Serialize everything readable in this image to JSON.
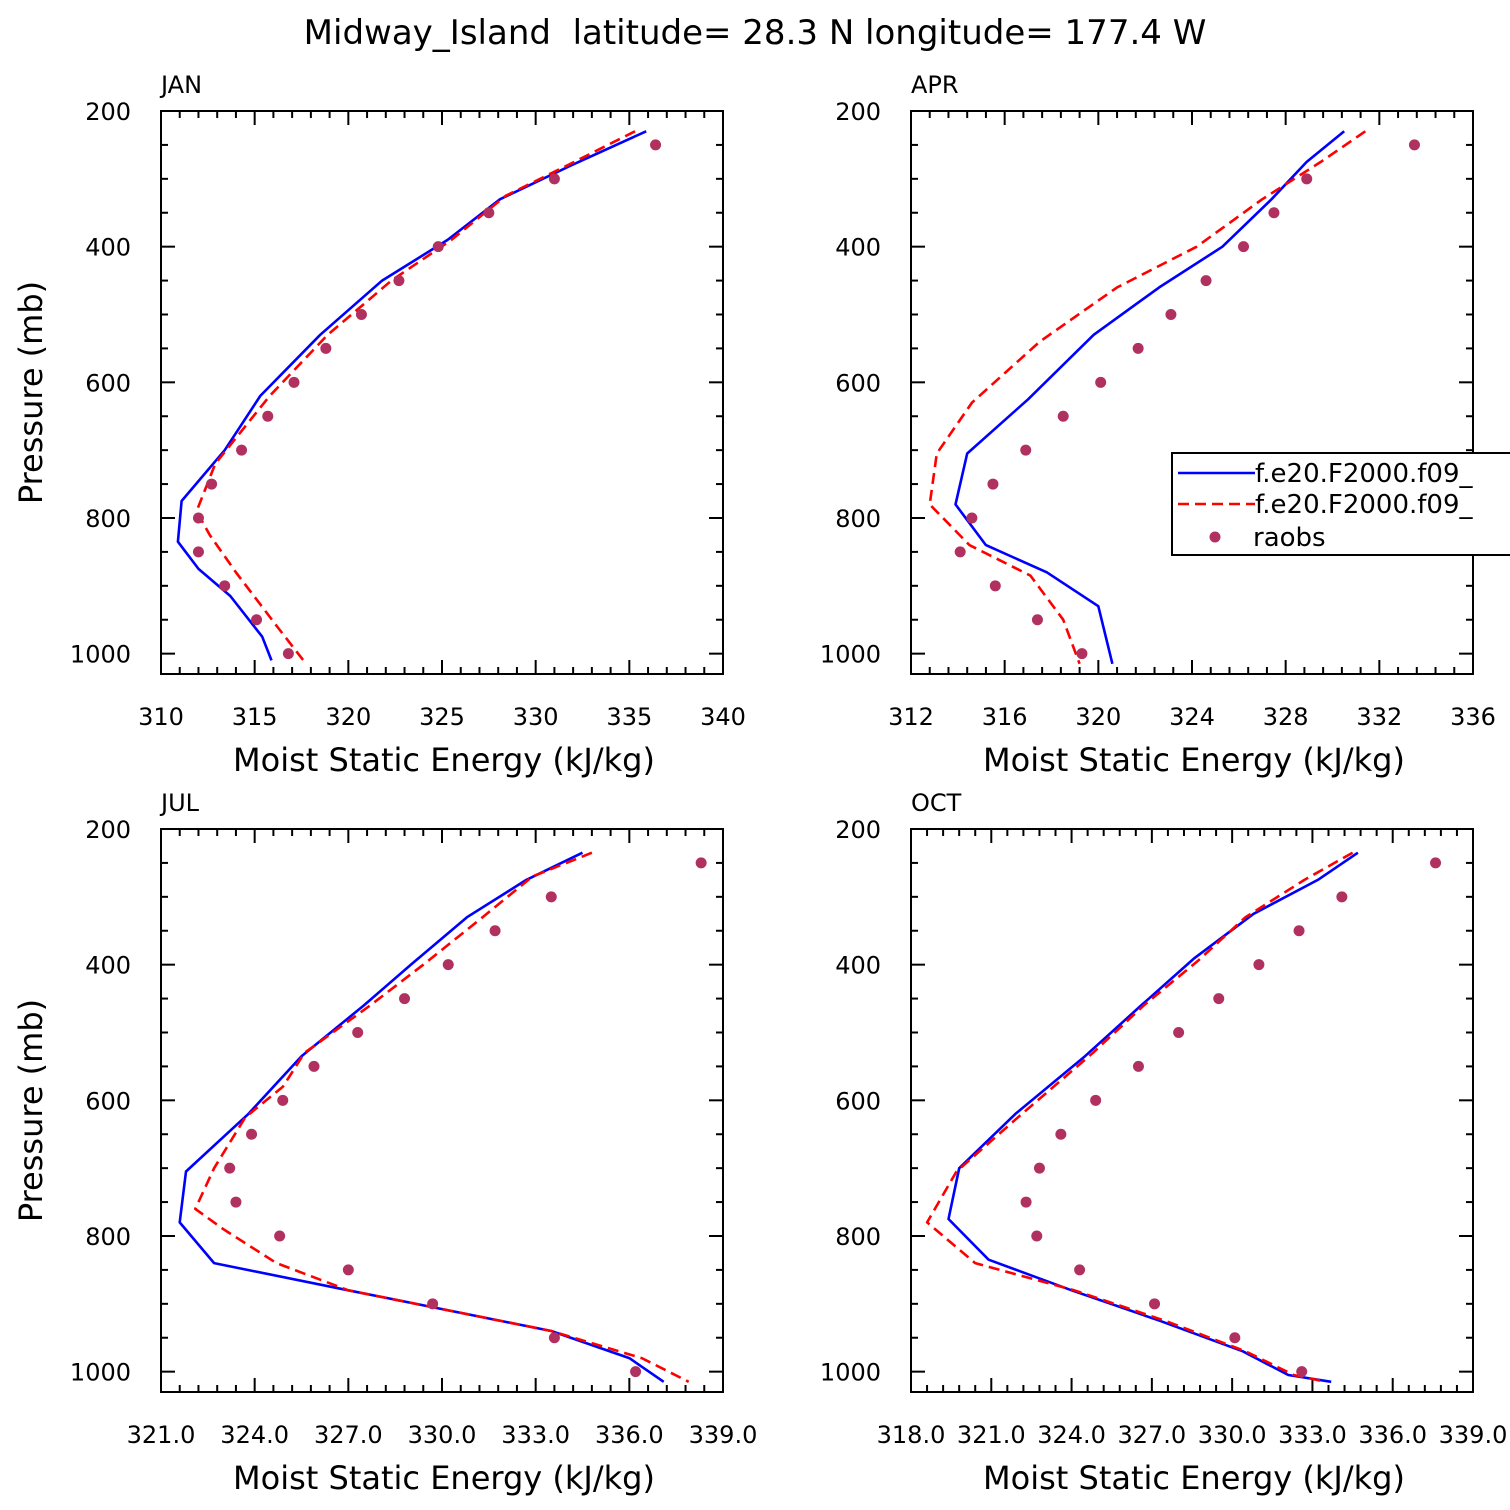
{
  "figure": {
    "title": "Midway_Island  latitude= 28.3 N longitude= 177.4 W"
  },
  "legend": {
    "entries": [
      {
        "label": "f.e20.F2000.f09_",
        "color": "#0000ff",
        "style": "solid"
      },
      {
        "label": "f.e20.F2000.f09_",
        "color": "#ff0000",
        "style": "dashed"
      },
      {
        "label": "raobs",
        "color": "#b03060",
        "style": "dot"
      }
    ]
  },
  "chart_data": [
    {
      "type": "line",
      "panel": "JAN",
      "xlabel": "Moist Static Energy (kJ/kg)",
      "ylabel": "Pressure (mb)",
      "xlim": [
        310,
        340
      ],
      "ylim": [
        1000,
        200
      ],
      "xticks": [
        310,
        315,
        320,
        325,
        330,
        335,
        340
      ],
      "xtick_labels": [
        "310",
        "315",
        "320",
        "325",
        "330",
        "335",
        "340"
      ],
      "yticks": [
        200,
        400,
        600,
        800,
        1000
      ],
      "ytick_labels": [
        "200",
        "400",
        "600",
        "800",
        "1000"
      ],
      "series": [
        {
          "name": "f.e20.F2000.f09_",
          "style": "solid",
          "color": "#0000ff",
          "x": [
            335.9,
            331.9,
            328.1,
            325.3,
            321.8,
            318.5,
            315.3,
            313.4,
            311.1,
            310.9,
            312.0,
            313.7,
            315.4,
            315.9
          ],
          "y": [
            230,
            280,
            330,
            390,
            450,
            530,
            620,
            700,
            775,
            835,
            875,
            915,
            975,
            1010
          ]
        },
        {
          "name": "f.e20.F2000.f09_",
          "style": "dashed",
          "color": "#ff0000",
          "x": [
            335.3,
            331.7,
            328.4,
            325.5,
            322.3,
            318.9,
            315.8,
            312.9,
            311.9,
            312.6,
            314.0,
            316.2,
            317.6
          ],
          "y": [
            230,
            280,
            325,
            390,
            450,
            530,
            620,
            720,
            790,
            825,
            880,
            960,
            1010
          ]
        },
        {
          "name": "raobs",
          "style": "dot",
          "color": "#b03060",
          "x": [
            336.4,
            331.0,
            327.5,
            324.8,
            322.7,
            320.7,
            318.8,
            317.1,
            315.7,
            314.3,
            312.7,
            312.0,
            312.0,
            313.4,
            315.1,
            316.8
          ],
          "y": [
            250,
            300,
            350,
            400,
            450,
            500,
            550,
            600,
            650,
            700,
            750,
            800,
            850,
            900,
            950,
            1000
          ]
        }
      ]
    },
    {
      "type": "line",
      "panel": "APR",
      "xlabel": "Moist Static Energy (kJ/kg)",
      "ylabel": "",
      "xlim": [
        312,
        336
      ],
      "ylim": [
        1000,
        200
      ],
      "xticks": [
        312,
        316,
        320,
        324,
        328,
        332,
        336
      ],
      "xtick_labels": [
        "312",
        "316",
        "320",
        "324",
        "328",
        "332",
        "336"
      ],
      "yticks": [
        200,
        400,
        600,
        800,
        1000
      ],
      "ytick_labels": [
        "200",
        "400",
        "600",
        "800",
        "1000"
      ],
      "series": [
        {
          "name": "f.e20.F2000.f09_",
          "style": "solid",
          "color": "#0000ff",
          "x": [
            330.5,
            328.9,
            327.4,
            325.3,
            322.6,
            319.8,
            317.0,
            314.4,
            313.9,
            315.2,
            317.8,
            320.0,
            320.6
          ],
          "y": [
            230,
            275,
            330,
            400,
            460,
            530,
            625,
            705,
            780,
            840,
            880,
            930,
            1015
          ]
        },
        {
          "name": "f.e20.F2000.f09_",
          "style": "dashed",
          "color": "#ff0000",
          "x": [
            331.4,
            329.5,
            327.0,
            324.2,
            320.8,
            317.5,
            314.6,
            313.1,
            312.8,
            314.5,
            317.1,
            318.5,
            319.2
          ],
          "y": [
            230,
            275,
            330,
            400,
            460,
            540,
            630,
            705,
            780,
            840,
            885,
            950,
            1015
          ]
        },
        {
          "name": "raobs",
          "style": "dot",
          "color": "#b03060",
          "x": [
            333.5,
            328.9,
            327.5,
            326.2,
            324.6,
            323.1,
            321.7,
            320.1,
            318.5,
            316.9,
            315.5,
            314.6,
            314.1,
            315.6,
            317.4,
            319.3
          ],
          "y": [
            250,
            300,
            350,
            400,
            450,
            500,
            550,
            600,
            650,
            700,
            750,
            800,
            850,
            900,
            950,
            1000
          ]
        }
      ]
    },
    {
      "type": "line",
      "panel": "JUL",
      "xlabel": "Moist Static Energy (kJ/kg)",
      "ylabel": "Pressure (mb)",
      "xlim": [
        321.0,
        339.0
      ],
      "ylim": [
        1000,
        200
      ],
      "xticks": [
        321.0,
        324.0,
        327.0,
        330.0,
        333.0,
        336.0,
        339.0
      ],
      "xtick_labels": [
        "321.0",
        "324.0",
        "327.0",
        "330.0",
        "333.0",
        "336.0",
        "339.0"
      ],
      "yticks": [
        200,
        400,
        600,
        800,
        1000
      ],
      "ytick_labels": [
        "200",
        "400",
        "600",
        "800",
        "1000"
      ],
      "series": [
        {
          "name": "f.e20.F2000.f09_",
          "style": "solid",
          "color": "#0000ff",
          "x": [
            334.5,
            332.7,
            330.8,
            329.0,
            327.5,
            325.5,
            323.8,
            321.8,
            321.6,
            322.7,
            327.0,
            333.5,
            336.0,
            337.1
          ],
          "y": [
            235,
            275,
            330,
            400,
            460,
            535,
            620,
            705,
            780,
            840,
            880,
            940,
            980,
            1015
          ]
        },
        {
          "name": "f.e20.F2000.f09_",
          "style": "dashed",
          "color": "#ff0000",
          "x": [
            334.8,
            332.9,
            331.3,
            329.4,
            327.7,
            325.6,
            324.9,
            323.7,
            322.7,
            322.1,
            323.0,
            324.7,
            327.0,
            333.5,
            336.4,
            337.9
          ],
          "y": [
            235,
            270,
            330,
            400,
            460,
            530,
            580,
            625,
            700,
            760,
            790,
            840,
            880,
            940,
            980,
            1015
          ]
        },
        {
          "name": "raobs",
          "style": "dot",
          "color": "#b03060",
          "x": [
            338.3,
            333.5,
            331.7,
            330.2,
            328.8,
            327.3,
            325.9,
            324.9,
            323.9,
            323.2,
            323.4,
            324.8,
            327.0,
            329.7,
            333.6,
            336.2
          ],
          "y": [
            250,
            300,
            350,
            400,
            450,
            500,
            550,
            600,
            650,
            700,
            750,
            800,
            850,
            900,
            950,
            1000
          ]
        }
      ]
    },
    {
      "type": "line",
      "panel": "OCT",
      "xlabel": "Moist Static Energy (kJ/kg)",
      "ylabel": "",
      "xlim": [
        318.0,
        339.0
      ],
      "ylim": [
        1000,
        200
      ],
      "xticks": [
        318.0,
        321.0,
        324.0,
        327.0,
        330.0,
        333.0,
        336.0,
        339.0
      ],
      "xtick_labels": [
        "318.0",
        "321.0",
        "324.0",
        "327.0",
        "330.0",
        "333.0",
        "336.0",
        "339.0"
      ],
      "yticks": [
        200,
        400,
        600,
        800,
        1000
      ],
      "ytick_labels": [
        "200",
        "400",
        "600",
        "800",
        "1000"
      ],
      "series": [
        {
          "name": "f.e20.F2000.f09_",
          "style": "solid",
          "color": "#0000ff",
          "x": [
            334.7,
            333.2,
            330.8,
            328.6,
            326.6,
            324.5,
            321.9,
            319.8,
            319.4,
            320.9,
            324.0,
            327.3,
            330.4,
            332.1,
            333.7
          ],
          "y": [
            235,
            275,
            325,
            390,
            460,
            535,
            620,
            700,
            775,
            835,
            880,
            925,
            970,
            1005,
            1015
          ]
        },
        {
          "name": "f.e20.F2000.f09_",
          "style": "dashed",
          "color": "#ff0000",
          "x": [
            334.5,
            332.7,
            330.5,
            328.7,
            326.7,
            324.8,
            322.0,
            319.7,
            318.6,
            320.4,
            324.1,
            327.5,
            330.5,
            332.3,
            333.5
          ],
          "y": [
            235,
            275,
            330,
            395,
            460,
            530,
            625,
            705,
            780,
            840,
            880,
            925,
            970,
            1005,
            1015
          ]
        },
        {
          "name": "raobs",
          "style": "dot",
          "color": "#b03060",
          "x": [
            337.6,
            334.1,
            332.5,
            331.0,
            329.5,
            328.0,
            326.5,
            324.9,
            323.6,
            322.8,
            322.3,
            322.7,
            324.3,
            327.1,
            330.1,
            332.6
          ],
          "y": [
            250,
            300,
            350,
            400,
            450,
            500,
            550,
            600,
            650,
            700,
            750,
            800,
            850,
            900,
            950,
            1000
          ]
        }
      ]
    }
  ]
}
